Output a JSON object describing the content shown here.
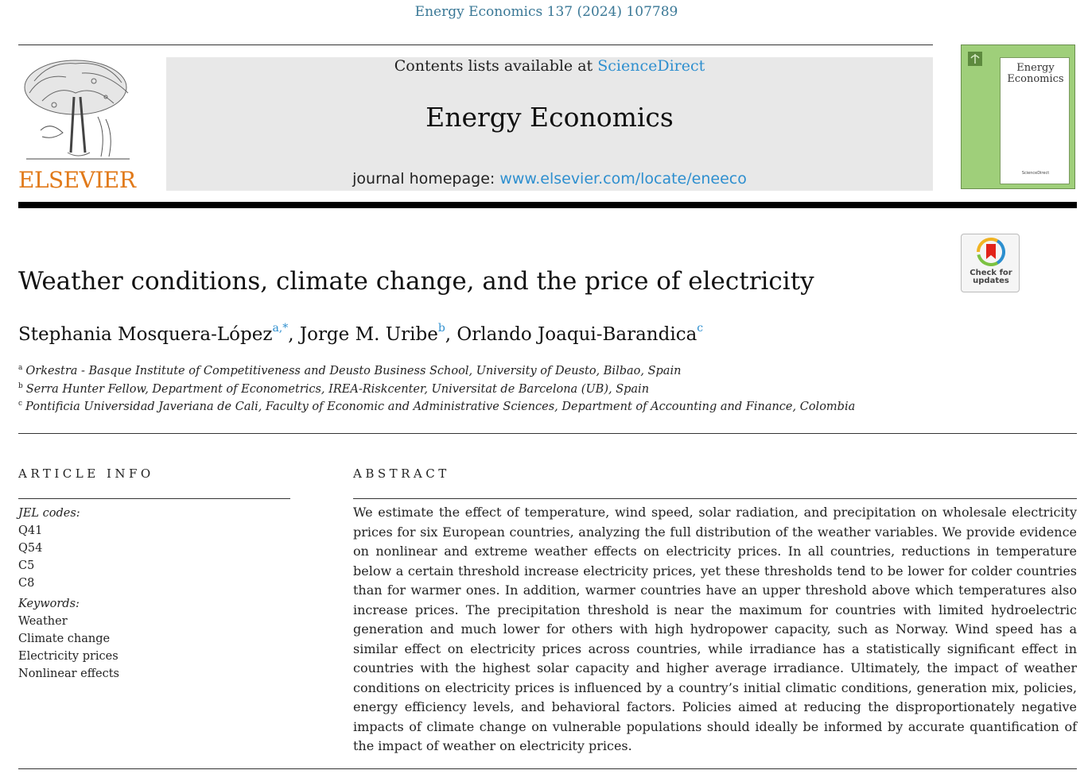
{
  "citation": "Energy Economics 137 (2024) 107789",
  "publisher": {
    "logo_label": "ELSEVIER"
  },
  "banner": {
    "contents_prefix": "Contents lists available at",
    "contents_link": "ScienceDirect",
    "journal_name": "Energy Economics",
    "homepage_prefix": "journal homepage:",
    "homepage_link": "www.elsevier.com/locate/eneeco"
  },
  "cover": {
    "title_line1": "Energy",
    "title_line2": "Economics",
    "foot": "ScienceDirect"
  },
  "check_updates": {
    "line1": "Check for",
    "line2": "updates"
  },
  "article": {
    "title": "Weather conditions, climate change, and the price of electricity",
    "authors": [
      {
        "name": "Stephania Mosquera-López",
        "sup": "a,*"
      },
      {
        "name": "Jorge M. Uribe",
        "sup": "b"
      },
      {
        "name": "Orlando Joaqui-Barandica",
        "sup": "c"
      }
    ],
    "affiliations": [
      {
        "mark": "a",
        "text": "Orkestra - Basque Institute of Competitiveness and Deusto Business School, University of Deusto, Bilbao, Spain"
      },
      {
        "mark": "b",
        "text": "Serra Hunter Fellow, Department of Econometrics, IREA-Riskcenter, Universitat de Barcelona (UB), Spain"
      },
      {
        "mark": "c",
        "text": "Pontificia Universidad Javeriana de Cali, Faculty of Economic and Administrative Sciences, Department of Accounting and Finance, Colombia"
      }
    ]
  },
  "article_info": {
    "heading": "ARTICLE INFO",
    "jel_label": "JEL codes:",
    "jel_codes": [
      "Q41",
      "Q54",
      "C5",
      "C8"
    ],
    "keywords_label": "Keywords:",
    "keywords": [
      "Weather",
      "Climate change",
      "Electricity prices",
      "Nonlinear effects"
    ]
  },
  "abstract": {
    "heading": "ABSTRACT",
    "text": "We estimate the effect of temperature, wind speed, solar radiation, and precipitation on wholesale electricity prices for six European countries, analyzing the full distribution of the weather variables. We provide evidence on nonlinear and extreme weather effects on electricity prices. In all countries, reductions in temperature below a certain threshold increase electricity prices, yet these thresholds tend to be lower for colder countries than for warmer ones. In addition, warmer countries have an upper threshold above which temperatures also increase prices. The precipitation threshold is near the maximum for countries with limited hydroelectric generation and much lower for others with high hydropower capacity, such as Norway. Wind speed has a similar effect on electricity prices across countries, while irradiance has a statistically significant effect in countries with the highest solar capacity and higher average irradiance. Ultimately, the impact of weather conditions on electricity prices is influenced by a country’s initial climatic conditions, generation mix, policies, energy efficiency levels, and behavioral factors. Policies aimed at reducing the disproportionately negative impacts of climate change on vulnerable populations should ideally be informed by accurate quantification of the impact of weather on electricity prices."
  }
}
